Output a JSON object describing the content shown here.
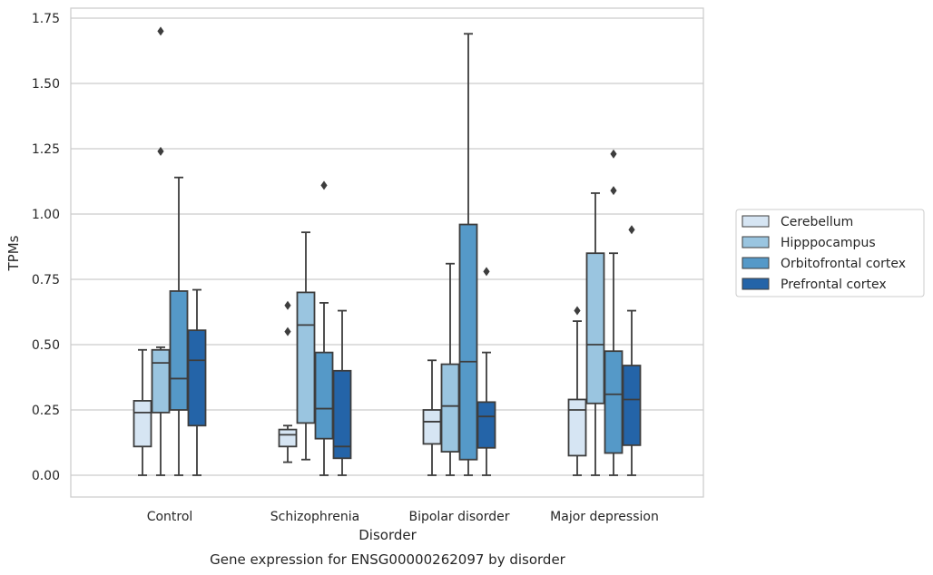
{
  "caption": "Gene expression for ENSG00000262097 by disorder",
  "chart_data": {
    "type": "box",
    "xlabel": "Disorder",
    "ylabel": "TPMs",
    "ylim": [
      -0.08,
      1.79
    ],
    "yticks": [
      "0.00",
      "0.25",
      "0.50",
      "0.75",
      "1.00",
      "1.25",
      "1.50",
      "1.75"
    ],
    "ytick_values": [
      0,
      0.25,
      0.5,
      0.75,
      1.0,
      1.25,
      1.5,
      1.75
    ],
    "categories": [
      "Control",
      "Schizophrenia",
      "Bipolar disorder",
      "Major depression"
    ],
    "grid": "horizontal",
    "legend_position": "right",
    "series": [
      {
        "name": "Cerebellum",
        "color": "#d6e5f3",
        "boxes": [
          {
            "whisker_low": 0.0,
            "q1": 0.11,
            "median": 0.24,
            "q3": 0.285,
            "whisker_high": 0.48,
            "outliers": []
          },
          {
            "whisker_low": 0.05,
            "q1": 0.11,
            "median": 0.155,
            "q3": 0.175,
            "whisker_high": 0.19,
            "outliers": [
              0.55,
              0.65
            ]
          },
          {
            "whisker_low": 0.0,
            "q1": 0.12,
            "median": 0.205,
            "q3": 0.25,
            "whisker_high": 0.44,
            "outliers": []
          },
          {
            "whisker_low": 0.0,
            "q1": 0.075,
            "median": 0.25,
            "q3": 0.29,
            "whisker_high": 0.59,
            "outliers": [
              0.63
            ]
          }
        ]
      },
      {
        "name": "Hipppocampus",
        "color": "#9ac5e0",
        "boxes": [
          {
            "whisker_low": 0.0,
            "q1": 0.24,
            "median": 0.43,
            "q3": 0.48,
            "whisker_high": 0.49,
            "outliers": [
              1.24,
              1.7
            ]
          },
          {
            "whisker_low": 0.06,
            "q1": 0.2,
            "median": 0.575,
            "q3": 0.7,
            "whisker_high": 0.93,
            "outliers": []
          },
          {
            "whisker_low": 0.0,
            "q1": 0.09,
            "median": 0.265,
            "q3": 0.425,
            "whisker_high": 0.81,
            "outliers": []
          },
          {
            "whisker_low": 0.0,
            "q1": 0.275,
            "median": 0.5,
            "q3": 0.85,
            "whisker_high": 1.08,
            "outliers": []
          }
        ]
      },
      {
        "name": "Orbitofrontal cortex",
        "color": "#5599c8",
        "boxes": [
          {
            "whisker_low": 0.0,
            "q1": 0.25,
            "median": 0.37,
            "q3": 0.705,
            "whisker_high": 1.14,
            "outliers": []
          },
          {
            "whisker_low": 0.0,
            "q1": 0.14,
            "median": 0.255,
            "q3": 0.47,
            "whisker_high": 0.66,
            "outliers": [
              1.11
            ]
          },
          {
            "whisker_low": 0.0,
            "q1": 0.06,
            "median": 0.435,
            "q3": 0.96,
            "whisker_high": 1.69,
            "outliers": []
          },
          {
            "whisker_low": 0.0,
            "q1": 0.085,
            "median": 0.31,
            "q3": 0.475,
            "whisker_high": 0.85,
            "outliers": [
              1.09,
              1.23
            ]
          }
        ]
      },
      {
        "name": "Prefrontal cortex",
        "color": "#2464a8",
        "boxes": [
          {
            "whisker_low": 0.0,
            "q1": 0.19,
            "median": 0.44,
            "q3": 0.555,
            "whisker_high": 0.71,
            "outliers": []
          },
          {
            "whisker_low": 0.0,
            "q1": 0.065,
            "median": 0.11,
            "q3": 0.4,
            "whisker_high": 0.63,
            "outliers": []
          },
          {
            "whisker_low": 0.0,
            "q1": 0.105,
            "median": 0.225,
            "q3": 0.28,
            "whisker_high": 0.47,
            "outliers": [
              0.78
            ]
          },
          {
            "whisker_low": 0.0,
            "q1": 0.115,
            "median": 0.29,
            "q3": 0.42,
            "whisker_high": 0.63,
            "outliers": [
              0.94
            ]
          }
        ]
      }
    ]
  }
}
